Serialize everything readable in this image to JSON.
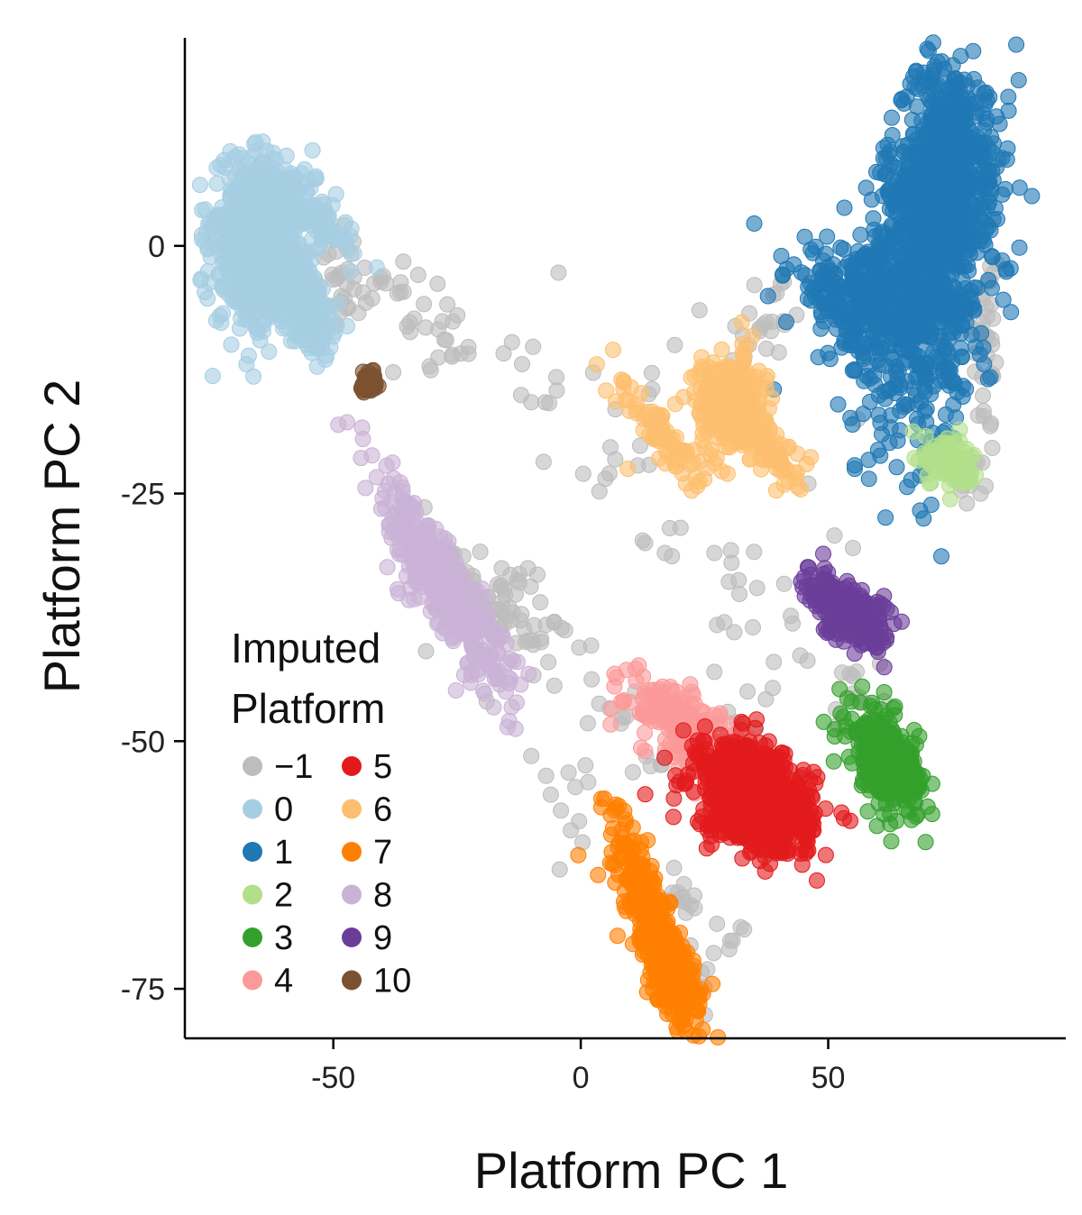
{
  "chart_data": {
    "type": "scatter",
    "xlabel": "Platform PC 1",
    "ylabel": "Platform PC 2",
    "xlim": [
      -80,
      98
    ],
    "ylim": [
      -80,
      21
    ],
    "xticks": [
      -50,
      0,
      50
    ],
    "xtick_labels": [
      "-50",
      "0",
      "50"
    ],
    "yticks": [
      0,
      -25,
      -50,
      -75
    ],
    "ytick_labels": [
      "0",
      "-25",
      "-50",
      "-75"
    ],
    "legend": {
      "title_lines": [
        "Imputed",
        "Platform"
      ],
      "placement": "bottom-left"
    },
    "series": [
      {
        "name": "−1",
        "color": "#bdbdbd",
        "clusters": [
          {
            "cx": -48,
            "cy": -3,
            "sx": 5,
            "sy": 3,
            "rot": -35,
            "n": 45
          },
          {
            "cx": -30,
            "cy": -8,
            "sx": 6,
            "sy": 2.5,
            "rot": -25,
            "n": 25
          },
          {
            "cx": -15,
            "cy": -12,
            "sx": 7,
            "sy": 2,
            "rot": -15,
            "n": 12
          },
          {
            "cx": 10,
            "cy": -18,
            "sx": 14,
            "sy": 6,
            "rot": 0,
            "n": 14
          },
          {
            "cx": 37,
            "cy": -8,
            "sx": 6,
            "sy": 3,
            "rot": 20,
            "n": 25
          },
          {
            "cx": 82,
            "cy": -10,
            "sx": 1.5,
            "sy": 6,
            "rot": 0,
            "n": 35
          },
          {
            "cx": 79,
            "cy": -24,
            "sx": 2,
            "sy": 1.5,
            "rot": 0,
            "n": 10
          },
          {
            "cx": -17,
            "cy": -36,
            "sx": 7,
            "sy": 2.5,
            "rot": -25,
            "n": 70
          },
          {
            "cx": 0,
            "cy": -43,
            "sx": 6,
            "sy": 2,
            "rot": -30,
            "n": 15
          },
          {
            "cx": 33,
            "cy": -34,
            "sx": 12,
            "sy": 4,
            "rot": -15,
            "n": 22
          },
          {
            "cx": 30,
            "cy": -48,
            "sx": 8,
            "sy": 2,
            "rot": 15,
            "n": 20
          },
          {
            "cx": 55,
            "cy": -46,
            "sx": 3,
            "sy": 1.5,
            "rot": 0,
            "n": 10
          },
          {
            "cx": -2,
            "cy": -56,
            "sx": 3,
            "sy": 3,
            "rot": 0,
            "n": 8
          },
          {
            "cx": 21,
            "cy": -65,
            "sx": 2.5,
            "sy": 1.5,
            "rot": 0,
            "n": 12
          },
          {
            "cx": 27,
            "cy": -72,
            "sx": 4,
            "sy": 2,
            "rot": 30,
            "n": 10
          }
        ],
        "points": [
          [
            -4.5,
            -2.7
          ],
          [
            24,
            -6.5
          ],
          [
            19,
            -10
          ],
          [
            34,
            -10
          ],
          [
            2.5,
            -12.8
          ],
          [
            7,
            -16.5
          ],
          [
            -7.5,
            -21.8
          ],
          [
            0.5,
            -23
          ],
          [
            5,
            -23.5
          ],
          [
            37,
            -19.5
          ],
          [
            46,
            -24
          ],
          [
            56,
            -17.5
          ],
          [
            18,
            -28.5
          ],
          [
            17,
            -31
          ],
          [
            13,
            -30
          ],
          [
            27,
            -31
          ],
          [
            55,
            -30.5
          ],
          [
            29,
            -38
          ],
          [
            31,
            -39
          ],
          [
            39,
            -42
          ],
          [
            27,
            -43
          ],
          [
            11,
            -45
          ],
          [
            16,
            -45
          ],
          [
            -19,
            -46
          ],
          [
            -10,
            -51.5
          ],
          [
            -7,
            -53.5
          ],
          [
            -4,
            -57
          ],
          [
            -2,
            -59
          ],
          [
            33,
            -69
          ],
          [
            30,
            -71
          ]
        ]
      },
      {
        "name": "0",
        "color": "#a6cee3",
        "clusters": [
          {
            "cx": -66,
            "cy": 0,
            "sx": 4,
            "sy": 4,
            "rot": -25,
            "n": 650
          },
          {
            "cx": -57,
            "cy": -5,
            "sx": 5,
            "sy": 2,
            "rot": -35,
            "n": 250
          },
          {
            "cx": -56,
            "cy": 4,
            "sx": 5,
            "sy": 1.5,
            "rot": -25,
            "n": 150
          }
        ],
        "points": []
      },
      {
        "name": "1",
        "color": "#1f78b4",
        "clusters": [
          {
            "cx": 71,
            "cy": 0,
            "sx": 6,
            "sy": 10,
            "rot": -20,
            "n": 900
          },
          {
            "cx": 74,
            "cy": 8,
            "sx": 4,
            "sy": 4,
            "rot": 0,
            "n": 400
          },
          {
            "cx": 58,
            "cy": -6,
            "sx": 8,
            "sy": 2.5,
            "rot": -10,
            "n": 300
          }
        ],
        "points": [
          [
            49.5,
            -0.8
          ],
          [
            39,
            -14.5
          ],
          [
            52,
            -16
          ]
        ]
      },
      {
        "name": "2",
        "color": "#b2df8a",
        "clusters": [
          {
            "cx": 74.5,
            "cy": -22,
            "sx": 3,
            "sy": 1.3,
            "rot": -15,
            "n": 80
          }
        ],
        "points": []
      },
      {
        "name": "3",
        "color": "#33a02c",
        "clusters": [
          {
            "cx": 62,
            "cy": -52,
            "sx": 4,
            "sy": 2,
            "rot": -25,
            "n": 300
          }
        ],
        "points": []
      },
      {
        "name": "4",
        "color": "#fb9a99",
        "clusters": [
          {
            "cx": 21,
            "cy": -48.5,
            "sx": 6,
            "sy": 1.8,
            "rot": -18,
            "n": 220
          }
        ],
        "points": [
          [
            13,
            -51
          ]
        ]
      },
      {
        "name": "5",
        "color": "#e31a1c",
        "clusters": [
          {
            "cx": 35,
            "cy": -55.5,
            "sx": 6,
            "sy": 2.5,
            "rot": -10,
            "n": 700
          },
          {
            "cx": 38,
            "cy": -57.5,
            "sx": 4,
            "sy": 1.3,
            "rot": 0,
            "n": 200
          }
        ],
        "points": []
      },
      {
        "name": "6",
        "color": "#fdbf6f",
        "clusters": [
          {
            "cx": 30,
            "cy": -16,
            "sx": 3.5,
            "sy": 2.5,
            "rot": 0,
            "n": 250
          },
          {
            "cx": 16,
            "cy": -19,
            "sx": 5,
            "sy": 1.3,
            "rot": -30,
            "n": 80
          },
          {
            "cx": 38,
            "cy": -20.5,
            "sx": 4,
            "sy": 1.3,
            "rot": -25,
            "n": 80
          }
        ],
        "points": [
          [
            9.5,
            -22.5
          ],
          [
            19,
            -21.5
          ]
        ]
      },
      {
        "name": "7",
        "color": "#ff7f00",
        "clusters": [
          {
            "cx": 15,
            "cy": -69,
            "sx": 6,
            "sy": 1.8,
            "rot": -52,
            "n": 380
          },
          {
            "cx": 20,
            "cy": -74.5,
            "sx": 2.5,
            "sy": 1.3,
            "rot": 0,
            "n": 80
          }
        ],
        "points": [
          [
            -0.5,
            -61.5
          ],
          [
            3.5,
            -63.5
          ]
        ]
      },
      {
        "name": "8",
        "color": "#cab2d6",
        "clusters": [
          {
            "cx": -28,
            "cy": -34,
            "sx": 9,
            "sy": 2,
            "rot": -38,
            "n": 380
          }
        ],
        "points": []
      },
      {
        "name": "9",
        "color": "#6a3d9a",
        "clusters": [
          {
            "cx": 54,
            "cy": -37,
            "sx": 4.5,
            "sy": 1.6,
            "rot": -18,
            "n": 200
          }
        ],
        "points": []
      },
      {
        "name": "10",
        "color": "#7b5130",
        "clusters": [
          {
            "cx": -42.5,
            "cy": -13.8,
            "sx": 1,
            "sy": 0.8,
            "rot": 0,
            "n": 35
          }
        ],
        "points": []
      }
    ]
  }
}
